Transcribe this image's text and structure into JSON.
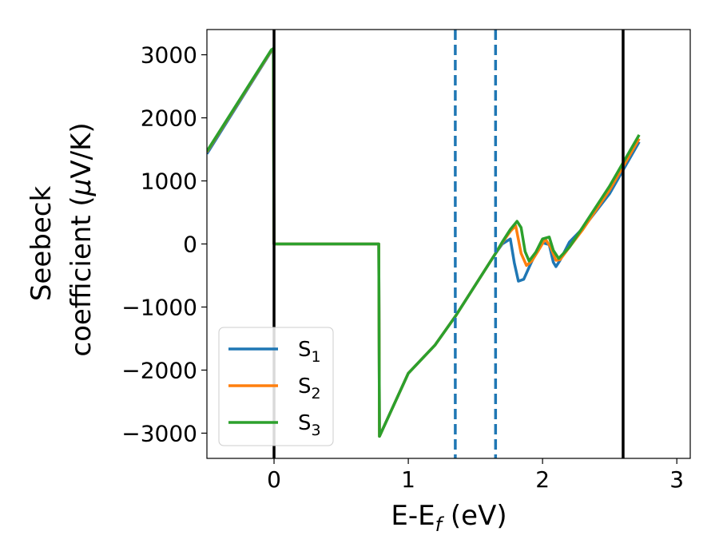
{
  "chart_data": {
    "type": "line",
    "title": "",
    "xlabel": "E-E",
    "xlabel_sub": "f",
    "xlabel_unit": " (eV)",
    "ylabel_line1": "Seebeck",
    "ylabel_line2": "coefficient  (",
    "ylabel_mu": "μ",
    "ylabel_unit_end": "V/K)",
    "xlim": [
      -0.5,
      3.1
    ],
    "ylim": [
      -3400,
      3400
    ],
    "xticks": [
      0,
      1,
      2,
      3
    ],
    "xtick_labels": [
      "0",
      "1",
      "2",
      "3"
    ],
    "yticks": [
      -3000,
      -2000,
      -1000,
      0,
      1000,
      2000,
      3000
    ],
    "ytick_labels": [
      "−3000",
      "−2000",
      "−1000",
      "0",
      "1000",
      "2000",
      "3000"
    ],
    "grid": false,
    "legend_position": "lower-left",
    "vlines": [
      {
        "x": 0.0,
        "style": "solid",
        "color": "#000000"
      },
      {
        "x": 2.6,
        "style": "solid",
        "color": "#000000"
      },
      {
        "x": 1.35,
        "style": "dashed",
        "color": "#1f77b4"
      },
      {
        "x": 1.65,
        "style": "dashed",
        "color": "#1f77b4"
      }
    ],
    "series": [
      {
        "name": "S",
        "sub": "1",
        "color": "#1f77b4",
        "x": [
          -0.5,
          -0.02,
          -0.005,
          0.0,
          0.05,
          0.78,
          0.785,
          1.0,
          1.2,
          1.35,
          1.5,
          1.65,
          1.7,
          1.76,
          1.79,
          1.82,
          1.86,
          1.9,
          1.95,
          2.0,
          2.05,
          2.08,
          2.1,
          2.13,
          2.2,
          2.3,
          2.5,
          2.72
        ],
        "y": [
          1430,
          3060,
          3080,
          0,
          0,
          0,
          -3050,
          -2050,
          -1600,
          -1150,
          -650,
          -150,
          0,
          80,
          -300,
          -590,
          -560,
          -370,
          -140,
          20,
          -10,
          -290,
          -360,
          -260,
          30,
          250,
          800,
          1620
        ]
      },
      {
        "name": "S",
        "sub": "2",
        "color": "#ff7f0e",
        "x": [
          -0.5,
          -0.02,
          -0.005,
          0.0,
          0.05,
          0.78,
          0.785,
          1.0,
          1.2,
          1.35,
          1.5,
          1.65,
          1.7,
          1.76,
          1.8,
          1.84,
          1.88,
          1.92,
          1.97,
          2.02,
          2.06,
          2.1,
          2.13,
          2.2,
          2.3,
          2.5,
          2.72
        ],
        "y": [
          1460,
          3070,
          3090,
          0,
          0,
          0,
          -3050,
          -2050,
          -1600,
          -1150,
          -650,
          -150,
          20,
          200,
          290,
          -150,
          -340,
          -270,
          -100,
          80,
          -50,
          -260,
          -250,
          -50,
          230,
          860,
          1670
        ]
      },
      {
        "name": "S",
        "sub": "3",
        "color": "#2ca02c",
        "x": [
          -0.5,
          -0.02,
          -0.005,
          0.0,
          0.05,
          0.78,
          0.785,
          1.0,
          1.2,
          1.35,
          1.5,
          1.65,
          1.7,
          1.76,
          1.81,
          1.84,
          1.87,
          1.9,
          1.95,
          2.0,
          2.05,
          2.08,
          2.12,
          2.2,
          2.3,
          2.5,
          2.72
        ],
        "y": [
          1470,
          3080,
          3100,
          0,
          0,
          0,
          -3050,
          -2050,
          -1600,
          -1150,
          -650,
          -150,
          30,
          230,
          360,
          260,
          -120,
          -270,
          -130,
          80,
          110,
          -100,
          -230,
          -50,
          270,
          920,
          1730
        ]
      }
    ]
  }
}
